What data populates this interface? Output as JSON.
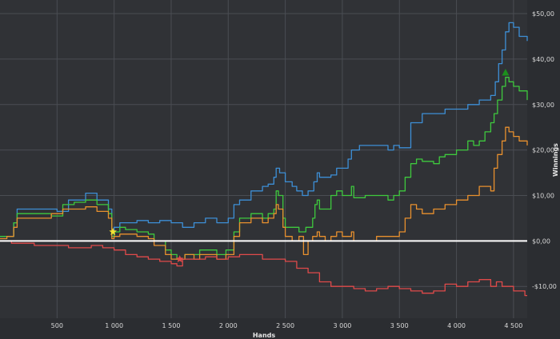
{
  "chart_data": {
    "type": "line",
    "xlabel": "Hands",
    "ylabel": "Winnings",
    "xlim": [
      0,
      4620
    ],
    "ylim": [
      -17,
      53
    ],
    "x_ticks": [
      500,
      1000,
      1500,
      2000,
      2500,
      3000,
      3500,
      4000,
      4500
    ],
    "x_tick_labels": [
      "500",
      "1 000",
      "1 500",
      "2 000",
      "2 500",
      "3 000",
      "3 500",
      "4 000",
      "4 500"
    ],
    "y_ticks": [
      -10,
      0,
      10,
      20,
      30,
      40,
      50
    ],
    "y_tick_labels": [
      "-$10,00",
      "$0,00",
      "$10,00",
      "$20,00",
      "$30,00",
      "$40,00",
      "$50,00"
    ],
    "grid": true,
    "zero_line": true,
    "series": [
      {
        "color": "#3d8fd6",
        "points": [
          [
            0,
            1
          ],
          [
            60,
            1
          ],
          [
            120,
            4
          ],
          [
            150,
            7
          ],
          [
            300,
            7
          ],
          [
            500,
            6.5
          ],
          [
            600,
            9
          ],
          [
            700,
            9
          ],
          [
            750,
            10.5
          ],
          [
            850,
            9
          ],
          [
            950,
            7
          ],
          [
            980,
            1
          ],
          [
            1000,
            3
          ],
          [
            1050,
            4
          ],
          [
            1200,
            4.5
          ],
          [
            1300,
            4
          ],
          [
            1400,
            4.5
          ],
          [
            1500,
            4
          ],
          [
            1600,
            3
          ],
          [
            1700,
            4
          ],
          [
            1800,
            5
          ],
          [
            1900,
            4
          ],
          [
            2000,
            5
          ],
          [
            2050,
            8
          ],
          [
            2100,
            9
          ],
          [
            2200,
            11
          ],
          [
            2300,
            12
          ],
          [
            2350,
            12.5
          ],
          [
            2400,
            14
          ],
          [
            2420,
            16
          ],
          [
            2450,
            15
          ],
          [
            2500,
            13
          ],
          [
            2560,
            12
          ],
          [
            2600,
            11
          ],
          [
            2650,
            10
          ],
          [
            2700,
            11
          ],
          [
            2750,
            13
          ],
          [
            2780,
            15
          ],
          [
            2800,
            14
          ],
          [
            2900,
            14.5
          ],
          [
            2950,
            16
          ],
          [
            3000,
            16
          ],
          [
            3050,
            18
          ],
          [
            3080,
            20
          ],
          [
            3150,
            21
          ],
          [
            3200,
            21
          ],
          [
            3300,
            21
          ],
          [
            3400,
            20
          ],
          [
            3450,
            21
          ],
          [
            3500,
            20.5
          ],
          [
            3600,
            26
          ],
          [
            3700,
            28
          ],
          [
            3800,
            28
          ],
          [
            3900,
            29
          ],
          [
            4000,
            29
          ],
          [
            4100,
            30
          ],
          [
            4200,
            31
          ],
          [
            4300,
            32
          ],
          [
            4340,
            35
          ],
          [
            4370,
            39
          ],
          [
            4400,
            42
          ],
          [
            4430,
            46
          ],
          [
            4460,
            48
          ],
          [
            4500,
            47
          ],
          [
            4550,
            45
          ],
          [
            4620,
            44
          ]
        ]
      },
      {
        "color": "#3ec93e",
        "points": [
          [
            0,
            1
          ],
          [
            60,
            1
          ],
          [
            120,
            4
          ],
          [
            150,
            6
          ],
          [
            300,
            6
          ],
          [
            450,
            5.5
          ],
          [
            550,
            8
          ],
          [
            650,
            8.5
          ],
          [
            750,
            9
          ],
          [
            850,
            8
          ],
          [
            950,
            6
          ],
          [
            980,
            1
          ],
          [
            1000,
            2
          ],
          [
            1050,
            3
          ],
          [
            1100,
            2.5
          ],
          [
            1200,
            2
          ],
          [
            1300,
            1.5
          ],
          [
            1350,
            0
          ],
          [
            1450,
            -2
          ],
          [
            1500,
            -3
          ],
          [
            1550,
            -4
          ],
          [
            1620,
            -3
          ],
          [
            1700,
            -3
          ],
          [
            1750,
            -2
          ],
          [
            1800,
            -2
          ],
          [
            1900,
            -3
          ],
          [
            1980,
            -2
          ],
          [
            2050,
            2
          ],
          [
            2100,
            5
          ],
          [
            2200,
            6
          ],
          [
            2300,
            5
          ],
          [
            2350,
            6
          ],
          [
            2400,
            7
          ],
          [
            2420,
            11
          ],
          [
            2440,
            10
          ],
          [
            2480,
            5
          ],
          [
            2500,
            3
          ],
          [
            2560,
            3
          ],
          [
            2620,
            2
          ],
          [
            2680,
            3
          ],
          [
            2740,
            5
          ],
          [
            2760,
            8
          ],
          [
            2780,
            9
          ],
          [
            2800,
            7
          ],
          [
            2850,
            7
          ],
          [
            2900,
            10
          ],
          [
            2950,
            11
          ],
          [
            3000,
            10
          ],
          [
            3050,
            10
          ],
          [
            3080,
            12
          ],
          [
            3100,
            9.5
          ],
          [
            3200,
            10
          ],
          [
            3300,
            10
          ],
          [
            3400,
            9
          ],
          [
            3450,
            10
          ],
          [
            3500,
            11
          ],
          [
            3550,
            14
          ],
          [
            3600,
            17
          ],
          [
            3650,
            18
          ],
          [
            3700,
            17.5
          ],
          [
            3800,
            17
          ],
          [
            3850,
            18.5
          ],
          [
            3900,
            19
          ],
          [
            4000,
            20
          ],
          [
            4100,
            22
          ],
          [
            4150,
            21
          ],
          [
            4200,
            22
          ],
          [
            4250,
            24
          ],
          [
            4300,
            26
          ],
          [
            4330,
            28
          ],
          [
            4360,
            31
          ],
          [
            4400,
            34
          ],
          [
            4430,
            36
          ],
          [
            4460,
            35
          ],
          [
            4500,
            34
          ],
          [
            4550,
            33
          ],
          [
            4620,
            31
          ]
        ]
      },
      {
        "color": "#e8902e",
        "points": [
          [
            0,
            0.5
          ],
          [
            60,
            1
          ],
          [
            120,
            3
          ],
          [
            150,
            5
          ],
          [
            300,
            5
          ],
          [
            450,
            6
          ],
          [
            550,
            7
          ],
          [
            650,
            7
          ],
          [
            750,
            7.5
          ],
          [
            850,
            6.5
          ],
          [
            950,
            5
          ],
          [
            980,
            0.5
          ],
          [
            1000,
            1
          ],
          [
            1050,
            1.5
          ],
          [
            1200,
            1
          ],
          [
            1300,
            0.5
          ],
          [
            1350,
            -1
          ],
          [
            1450,
            -3
          ],
          [
            1500,
            -4
          ],
          [
            1550,
            -4
          ],
          [
            1620,
            -3
          ],
          [
            1700,
            -4
          ],
          [
            1750,
            -3
          ],
          [
            1800,
            -3
          ],
          [
            1900,
            -4
          ],
          [
            1980,
            -3
          ],
          [
            2050,
            1
          ],
          [
            2100,
            4
          ],
          [
            2200,
            5
          ],
          [
            2300,
            4
          ],
          [
            2350,
            5
          ],
          [
            2400,
            6
          ],
          [
            2420,
            8
          ],
          [
            2440,
            7
          ],
          [
            2480,
            3
          ],
          [
            2500,
            1
          ],
          [
            2560,
            0
          ],
          [
            2620,
            1
          ],
          [
            2660,
            -3
          ],
          [
            2700,
            0
          ],
          [
            2740,
            1
          ],
          [
            2780,
            2
          ],
          [
            2800,
            1
          ],
          [
            2850,
            0
          ],
          [
            2900,
            1
          ],
          [
            2950,
            2
          ],
          [
            3000,
            1
          ],
          [
            3050,
            1
          ],
          [
            3080,
            2
          ],
          [
            3100,
            0
          ],
          [
            3200,
            0
          ],
          [
            3300,
            1
          ],
          [
            3400,
            1
          ],
          [
            3450,
            1
          ],
          [
            3500,
            2
          ],
          [
            3550,
            5
          ],
          [
            3600,
            8
          ],
          [
            3650,
            7
          ],
          [
            3700,
            6
          ],
          [
            3800,
            7
          ],
          [
            3900,
            8
          ],
          [
            4000,
            9
          ],
          [
            4100,
            10
          ],
          [
            4150,
            10
          ],
          [
            4200,
            12
          ],
          [
            4250,
            12
          ],
          [
            4300,
            11
          ],
          [
            4330,
            16
          ],
          [
            4360,
            19
          ],
          [
            4400,
            22
          ],
          [
            4430,
            25
          ],
          [
            4460,
            24
          ],
          [
            4500,
            23
          ],
          [
            4550,
            22
          ],
          [
            4620,
            21
          ]
        ]
      },
      {
        "color": "#e04a4a",
        "points": [
          [
            0,
            0
          ],
          [
            100,
            -0.5
          ],
          [
            200,
            -0.5
          ],
          [
            300,
            -1
          ],
          [
            400,
            -1
          ],
          [
            500,
            -1
          ],
          [
            600,
            -1.5
          ],
          [
            700,
            -1.5
          ],
          [
            800,
            -1
          ],
          [
            900,
            -1.5
          ],
          [
            1000,
            -2
          ],
          [
            1100,
            -3
          ],
          [
            1200,
            -3.5
          ],
          [
            1300,
            -4
          ],
          [
            1400,
            -4.5
          ],
          [
            1500,
            -5
          ],
          [
            1550,
            -5.5
          ],
          [
            1600,
            -4
          ],
          [
            1700,
            -4
          ],
          [
            1800,
            -3.5
          ],
          [
            1900,
            -4
          ],
          [
            2000,
            -3.5
          ],
          [
            2100,
            -3
          ],
          [
            2200,
            -3
          ],
          [
            2300,
            -4
          ],
          [
            2400,
            -4
          ],
          [
            2500,
            -4.5
          ],
          [
            2600,
            -6
          ],
          [
            2700,
            -7
          ],
          [
            2800,
            -9
          ],
          [
            2900,
            -10
          ],
          [
            3000,
            -10
          ],
          [
            3100,
            -10.5
          ],
          [
            3200,
            -11
          ],
          [
            3300,
            -10.5
          ],
          [
            3400,
            -10
          ],
          [
            3500,
            -10.5
          ],
          [
            3600,
            -11
          ],
          [
            3700,
            -11.5
          ],
          [
            3800,
            -11
          ],
          [
            3900,
            -9.5
          ],
          [
            4000,
            -10
          ],
          [
            4100,
            -9
          ],
          [
            4200,
            -8.5
          ],
          [
            4300,
            -10
          ],
          [
            4350,
            -9
          ],
          [
            4400,
            -10
          ],
          [
            4500,
            -11
          ],
          [
            4600,
            -12
          ],
          [
            4620,
            -12
          ]
        ]
      }
    ],
    "markers": [
      {
        "shape": "star",
        "color": "#f2e233",
        "x": 990,
        "y": 2
      },
      {
        "shape": "star",
        "color": "#e04a4a",
        "x": 1575,
        "y": -4
      },
      {
        "shape": "triangle",
        "color": "#1c8f1c",
        "x": 4430,
        "y": 37
      }
    ]
  }
}
